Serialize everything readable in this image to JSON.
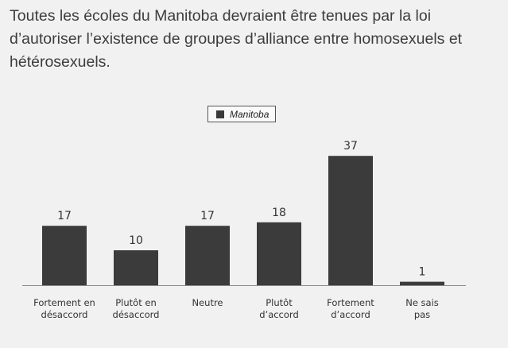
{
  "chart_data": {
    "type": "bar",
    "title": "Toutes les écoles du Manitoba devraient être tenues par la loi d’autoriser l’existence de groupes d’alliance entre homosexuels et hétérosexuels.",
    "legend": [
      "Manitoba"
    ],
    "categories": [
      [
        "Fortement en",
        "désaccord"
      ],
      [
        "Plutôt en",
        "désaccord"
      ],
      [
        "Neutre"
      ],
      [
        "Plutôt",
        "d’accord"
      ],
      [
        "Fortement",
        "d’accord"
      ],
      [
        "Ne sais",
        "pas"
      ]
    ],
    "series": [
      {
        "name": "Manitoba",
        "values": [
          17,
          10,
          17,
          18,
          37,
          1
        ]
      }
    ],
    "value_labels": [
      "17",
      "10",
      "17",
      "18",
      "37",
      "1"
    ],
    "ylim": [
      0,
      40
    ],
    "grid": false,
    "bar_color": "#3b3b3b",
    "legend_position": "top-center"
  }
}
